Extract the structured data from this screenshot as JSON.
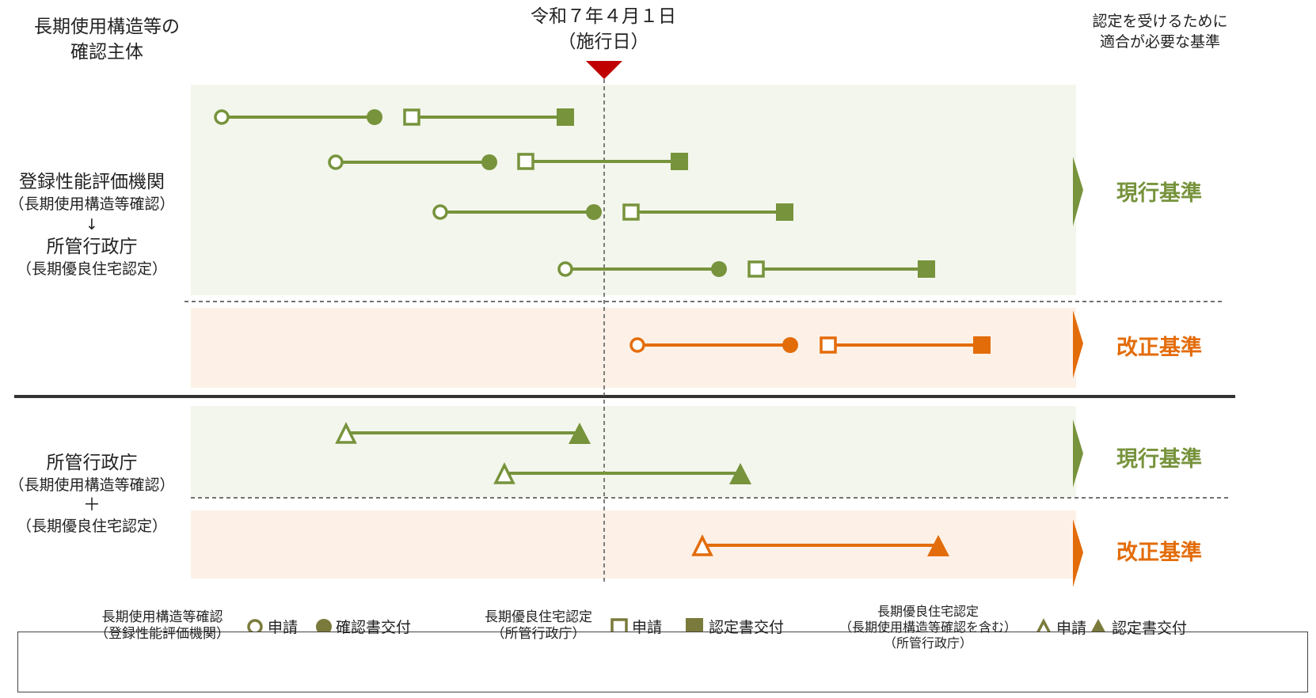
{
  "header": {
    "confirm_body_title_line1": "長期使用構造等の",
    "confirm_body_title_line2": "確認主体",
    "effective_date": "令和７年４月１日",
    "effective_label": "（施行日）",
    "standard_col_title_line1": "認定を受けるために",
    "standard_col_title_line2": "適合が必要な基準"
  },
  "left_labels": {
    "upper": {
      "line1": "登録性能評価機関",
      "line2": "（長期使用構造等確認）",
      "arrow": "↓",
      "line3": "所管行政庁",
      "line4": "（長期優良住宅認定）"
    },
    "lower": {
      "line1": "所管行政庁",
      "line2": "（長期使用構造等確認）",
      "plus": "＋",
      "line3": "（長期優良住宅認定）"
    }
  },
  "standards": {
    "current": "現行基準",
    "revised": "改正基準"
  },
  "colors": {
    "current": "#77933c",
    "current_band": "#f3f6ec",
    "revised": "#e36c0a",
    "revised_band": "#fdf1e7",
    "marker": "#c00000",
    "legend_fill": "#7a7a3c"
  },
  "legend": {
    "group1_line1": "長期使用構造等確認",
    "group1_line2": "（登録性能評価機関）",
    "group1_apply": "申請",
    "group1_issue": "確認書交付",
    "group2_line1": "長期優良住宅認定",
    "group2_line2": "（所管行政庁）",
    "group2_apply": "申請",
    "group2_issue": "認定書交付",
    "group3_line1": "長期優良住宅認定",
    "group3_line2": "（長期使用構造等確認を含む）",
    "group3_line3": "（所管行政庁）",
    "group3_apply": "申請",
    "group3_issue": "認定書交付"
  }
}
